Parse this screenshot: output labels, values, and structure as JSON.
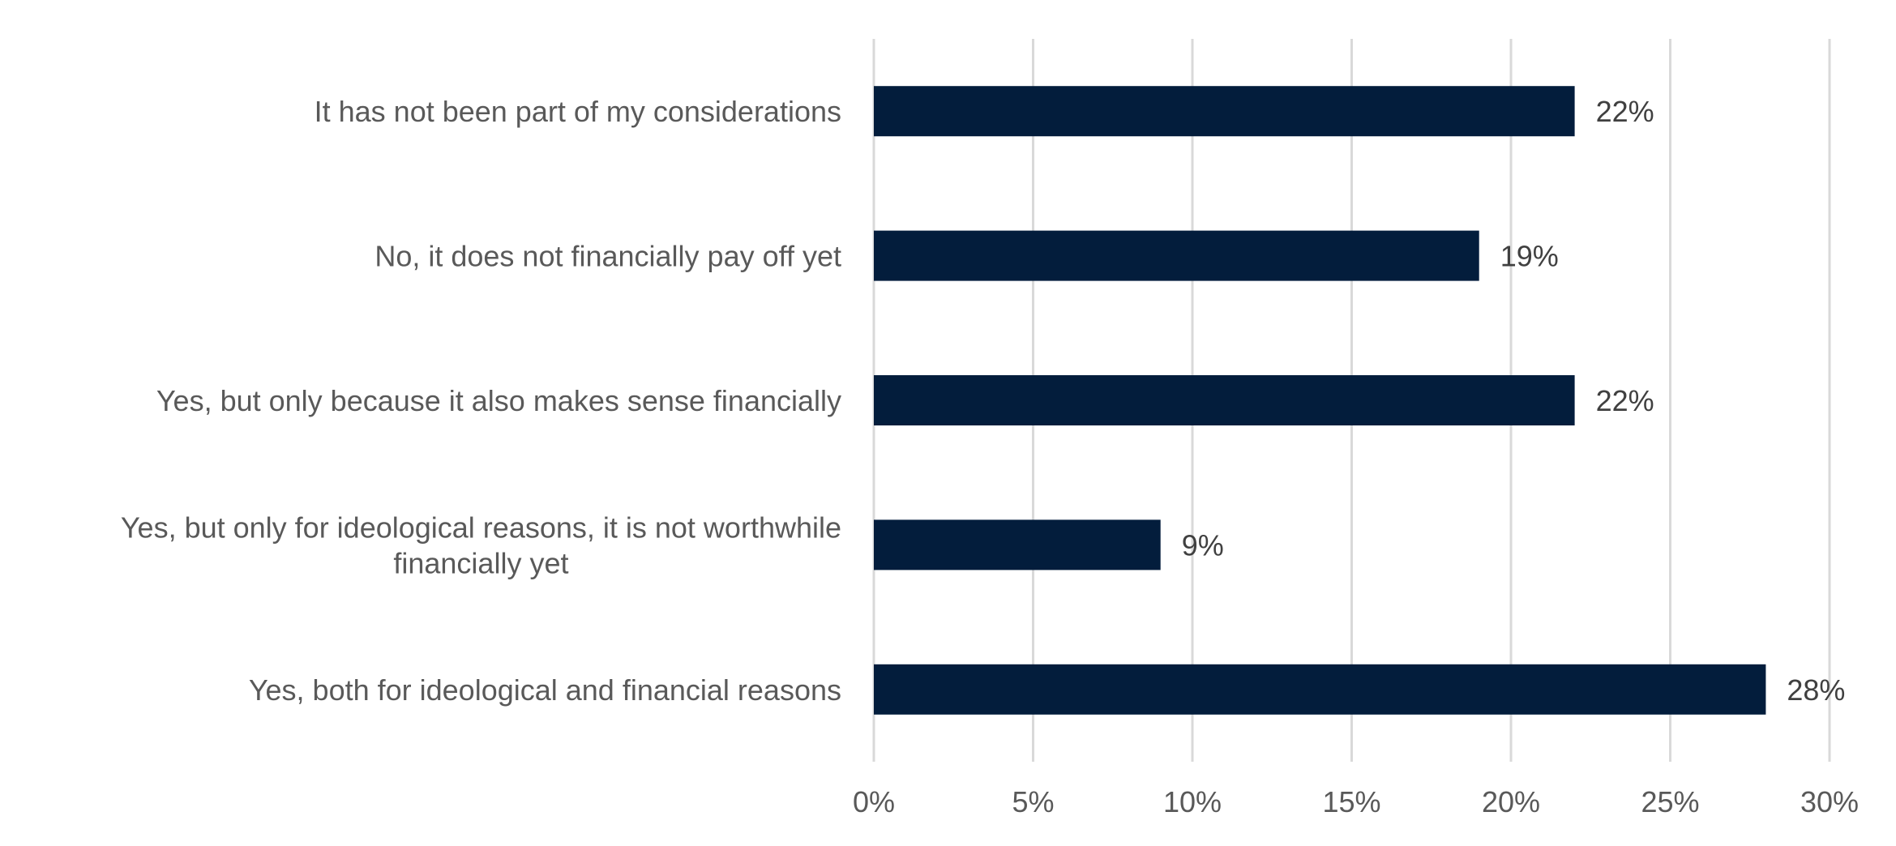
{
  "chart_data": {
    "type": "bar",
    "orientation": "horizontal",
    "title": "",
    "xlabel": "",
    "ylabel": "",
    "categories": [
      "It has not been part of my considerations",
      "No, it does not financially pay off yet",
      "Yes, but only because it also makes sense financially",
      "Yes, but only for ideological reasons, it is not worthwhile financially yet",
      "Yes, both for ideological and financial reasons"
    ],
    "category_label_lines": [
      [
        "It has not been part of my considerations"
      ],
      [
        "No, it does not financially pay off yet"
      ],
      [
        "Yes, but only because it also makes sense financially"
      ],
      [
        "Yes, but only for ideological reasons, it is not worthwhile",
        "financially yet"
      ],
      [
        "Yes, both for ideological and financial reasons"
      ]
    ],
    "values": [
      22,
      19,
      22,
      9,
      28
    ],
    "data_labels": [
      "22%",
      "19%",
      "22%",
      "9%",
      "28%"
    ],
    "xlim": [
      0,
      30
    ],
    "x_ticks": [
      0,
      5,
      10,
      15,
      20,
      25,
      30
    ],
    "x_tick_labels": [
      "0%",
      "5%",
      "10%",
      "15%",
      "20%",
      "25%",
      "30%"
    ],
    "grid": "vertical",
    "legend": "none",
    "colors": {
      "bar": "#031d3c",
      "grid": "#d9d9d9",
      "text": "#595959",
      "data_label": "#404040"
    }
  }
}
